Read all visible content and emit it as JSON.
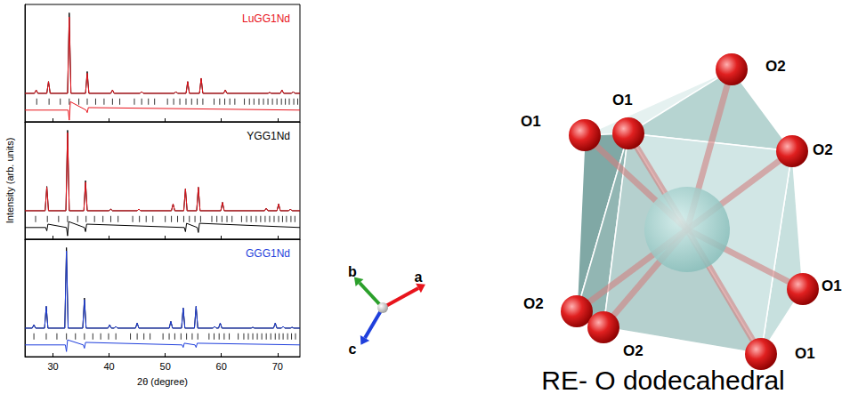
{
  "figure": {
    "ylabel": "Intensity (arb. units)"
  },
  "chart_data": [
    {
      "type": "line",
      "title": "LuGG1Nd",
      "color": "#e8141c",
      "xlim": [
        25,
        74
      ],
      "xticks": [
        30,
        40,
        50,
        60,
        70
      ],
      "ylim": [
        -30,
        110
      ],
      "grid": false,
      "tick_labels": false,
      "series": [
        {
          "type": "line",
          "color": "#000000",
          "x": [
            25,
            26.7,
            27.0,
            27.3,
            28.9,
            29.2,
            29.5,
            32.6,
            32.9,
            33.2,
            35.8,
            36.1,
            36.4,
            40.3,
            40.6,
            40.9,
            45.5,
            45.8,
            46.1,
            51.6,
            51.9,
            52.2,
            53.7,
            54.0,
            54.3,
            56.1,
            56.4,
            56.7,
            60.4,
            60.7,
            61.0,
            68.3,
            68.6,
            68.9,
            70.5,
            70.8,
            71.1,
            72.5,
            72.8,
            73.1,
            74
          ],
          "values": [
            4,
            4,
            8,
            4,
            4,
            18,
            4,
            4,
            100,
            4,
            4,
            30,
            4,
            4,
            8,
            4,
            4,
            6,
            4,
            4,
            6,
            4,
            4,
            18,
            4,
            4,
            22,
            4,
            4,
            8,
            4,
            4,
            5,
            4,
            4,
            8,
            4,
            4,
            6,
            4,
            4
          ]
        },
        {
          "type": "line",
          "color": "#e8141c",
          "x": [
            25,
            26.7,
            27.0,
            27.3,
            28.9,
            29.2,
            29.5,
            32.6,
            32.9,
            33.2,
            35.8,
            36.1,
            36.4,
            40.3,
            40.6,
            40.9,
            45.5,
            45.8,
            46.1,
            51.6,
            51.9,
            52.2,
            53.7,
            54.0,
            54.3,
            56.1,
            56.4,
            56.7,
            60.4,
            60.7,
            61.0,
            68.3,
            68.6,
            68.9,
            70.5,
            70.8,
            71.1,
            72.5,
            72.8,
            73.1,
            74
          ],
          "values": [
            4,
            4,
            8,
            4,
            4,
            18,
            4,
            4,
            95,
            4,
            4,
            28,
            4,
            4,
            8,
            4,
            4,
            6,
            4,
            4,
            6,
            4,
            4,
            18,
            4,
            4,
            22,
            4,
            4,
            8,
            4,
            4,
            5,
            4,
            4,
            8,
            4,
            4,
            6,
            4,
            4
          ]
        },
        {
          "type": "line",
          "color": "#e8141c",
          "x": [
            25,
            32.7,
            32.9,
            33.1,
            35.9,
            36.1,
            36.3,
            74
          ],
          "values": [
            -16,
            -16,
            -28,
            -6,
            -16,
            -19,
            -13,
            -16
          ]
        }
      ],
      "reflections": {
        "color": "#000000",
        "y": -6,
        "x": [
          27.1,
          29.3,
          31.3,
          32.9,
          34.6,
          36.1,
          37.6,
          39.1,
          40.6,
          41.9,
          44.5,
          45.8,
          47.0,
          48.1,
          50.4,
          51.5,
          52.6,
          53.7,
          54.7,
          55.7,
          56.7,
          58.7,
          59.7,
          60.6,
          61.5,
          62.4,
          64.1,
          65.0,
          65.8,
          66.7,
          67.5,
          68.3,
          69.1,
          69.9,
          70.7,
          71.4,
          72.1,
          72.9,
          73.6
        ]
      }
    },
    {
      "type": "line",
      "title": "YGG1Nd",
      "color": "#000000",
      "xlim": [
        25,
        74
      ],
      "xticks": [
        30,
        40,
        50,
        60,
        70
      ],
      "ylim": [
        -30,
        110
      ],
      "grid": false,
      "tick_labels": false,
      "series": [
        {
          "type": "line",
          "color": "#000000",
          "x": [
            25,
            28.6,
            28.9,
            29.2,
            32.3,
            32.6,
            32.9,
            35.5,
            35.8,
            36.1,
            40.0,
            40.3,
            40.6,
            45.0,
            45.3,
            45.6,
            51.1,
            51.4,
            51.7,
            53.3,
            53.6,
            53.9,
            55.6,
            55.9,
            56.2,
            59.9,
            60.2,
            60.5,
            67.7,
            68.0,
            68.3,
            69.9,
            70.2,
            70.5,
            72.0,
            72.3,
            72.6,
            74
          ],
          "values": [
            4,
            4,
            33,
            4,
            4,
            100,
            4,
            4,
            40,
            4,
            4,
            6,
            4,
            4,
            6,
            4,
            4,
            12,
            4,
            4,
            30,
            4,
            4,
            32,
            4,
            4,
            14,
            4,
            4,
            7,
            4,
            4,
            12,
            4,
            4,
            6,
            4,
            4
          ]
        },
        {
          "type": "line",
          "color": "#e8141c",
          "x": [
            25,
            28.6,
            28.9,
            29.2,
            32.3,
            32.6,
            32.9,
            35.5,
            35.8,
            36.1,
            40.0,
            40.3,
            40.6,
            45.0,
            45.3,
            45.6,
            51.1,
            51.4,
            51.7,
            53.3,
            53.6,
            53.9,
            55.6,
            55.9,
            56.2,
            59.9,
            60.2,
            60.5,
            67.7,
            68.0,
            68.3,
            69.9,
            70.2,
            70.5,
            72.0,
            72.3,
            72.6,
            74
          ],
          "values": [
            4,
            4,
            32,
            4,
            4,
            97,
            4,
            4,
            38,
            4,
            4,
            6,
            4,
            4,
            6,
            4,
            4,
            12,
            4,
            4,
            30,
            4,
            4,
            32,
            4,
            4,
            14,
            4,
            4,
            7,
            4,
            4,
            12,
            4,
            4,
            6,
            4,
            4
          ]
        },
        {
          "type": "line",
          "color": "#000000",
          "x": [
            25,
            28.7,
            28.9,
            29.1,
            32.4,
            32.6,
            32.8,
            35.6,
            35.8,
            36.0,
            53.4,
            53.6,
            53.8,
            55.7,
            55.9,
            56.1,
            74
          ],
          "values": [
            -16,
            -16,
            -20,
            -12,
            -16,
            -26,
            -9,
            -16,
            -21,
            -12,
            -16,
            -21,
            -11,
            -16,
            -22,
            -11,
            -16
          ]
        }
      ],
      "reflections": {
        "color": "#000000",
        "y": -6,
        "x": [
          26.9,
          29.0,
          31.0,
          32.6,
          34.4,
          35.9,
          37.4,
          38.9,
          40.3,
          41.6,
          44.2,
          45.4,
          46.6,
          47.8,
          50.0,
          51.1,
          52.2,
          53.3,
          54.3,
          55.3,
          56.3,
          58.3,
          59.2,
          60.1,
          61.0,
          61.9,
          63.6,
          64.5,
          65.3,
          66.2,
          67.0,
          67.8,
          68.6,
          69.4,
          70.2,
          70.9,
          71.6,
          72.4,
          73.1
        ]
      }
    },
    {
      "type": "line",
      "title": "GGG1Nd",
      "color": "#1f3fdc",
      "xlabel": "2θ (degree)",
      "xlim": [
        25,
        74
      ],
      "xticks": [
        30,
        40,
        50,
        60,
        70
      ],
      "ylim": [
        -30,
        110
      ],
      "grid": false,
      "tick_labels": "x",
      "series": [
        {
          "type": "line",
          "color": "#000000",
          "x": [
            25,
            26.3,
            26.6,
            26.9,
            28.5,
            28.8,
            29.1,
            32.1,
            32.4,
            32.7,
            35.3,
            35.6,
            35.9,
            39.8,
            40.1,
            40.4,
            40.9,
            41.2,
            41.5,
            44.7,
            45.0,
            45.3,
            50.7,
            51.0,
            51.3,
            52.9,
            53.2,
            53.5,
            55.2,
            55.5,
            55.8,
            58.5,
            58.8,
            59.1,
            59.5,
            59.8,
            60.1,
            65.3,
            65.6,
            65.9,
            69.3,
            69.6,
            69.9,
            70.7,
            71.0,
            71.3,
            72.3,
            72.6,
            72.9,
            74
          ],
          "values": [
            4,
            4,
            8,
            4,
            4,
            30,
            4,
            4,
            100,
            4,
            4,
            40,
            4,
            4,
            8,
            4,
            4,
            6,
            4,
            4,
            10,
            4,
            4,
            12,
            4,
            4,
            28,
            4,
            4,
            30,
            4,
            4,
            6,
            4,
            4,
            10,
            4,
            4,
            5,
            4,
            4,
            10,
            4,
            4,
            6,
            4,
            4,
            5,
            4,
            4
          ]
        },
        {
          "type": "line",
          "color": "#1f3fdc",
          "x": [
            25,
            26.3,
            26.6,
            26.9,
            28.5,
            28.8,
            29.1,
            32.1,
            32.4,
            32.7,
            35.3,
            35.6,
            35.9,
            39.8,
            40.1,
            40.4,
            40.9,
            41.2,
            41.5,
            44.7,
            45.0,
            45.3,
            50.7,
            51.0,
            51.3,
            52.9,
            53.2,
            53.5,
            55.2,
            55.5,
            55.8,
            58.5,
            58.8,
            59.1,
            59.5,
            59.8,
            60.1,
            65.3,
            65.6,
            65.9,
            69.3,
            69.6,
            69.9,
            70.7,
            71.0,
            71.3,
            72.3,
            72.6,
            72.9,
            74
          ],
          "values": [
            4,
            4,
            8,
            4,
            4,
            30,
            4,
            4,
            96,
            4,
            4,
            38,
            4,
            4,
            8,
            4,
            4,
            6,
            4,
            4,
            10,
            4,
            4,
            12,
            4,
            4,
            28,
            4,
            4,
            30,
            4,
            4,
            6,
            4,
            4,
            10,
            4,
            4,
            5,
            4,
            4,
            10,
            4,
            4,
            6,
            4,
            4,
            5,
            4,
            4
          ]
        },
        {
          "type": "line",
          "color": "#1f3fdc",
          "x": [
            25,
            32.2,
            32.4,
            32.6,
            35.4,
            35.6,
            35.8,
            53.0,
            53.2,
            53.4,
            55.3,
            55.5,
            55.7,
            74
          ],
          "values": [
            -16,
            -16,
            -24,
            -10,
            -16,
            -20,
            -13,
            -16,
            -19,
            -14,
            -16,
            -19,
            -14,
            -16
          ]
        }
      ],
      "reflections": {
        "color": "#000000",
        "y": -6,
        "x": [
          26.6,
          28.8,
          30.7,
          32.4,
          34.0,
          35.6,
          37.1,
          38.5,
          39.9,
          41.2,
          43.8,
          45.0,
          46.2,
          47.3,
          49.6,
          50.7,
          51.7,
          52.8,
          53.8,
          54.8,
          55.8,
          57.8,
          58.7,
          59.6,
          60.5,
          61.4,
          63.0,
          64.0,
          64.8,
          65.6,
          66.4,
          67.2,
          68.0,
          68.8,
          69.6,
          70.3,
          71.0,
          71.8,
          72.5,
          73.2
        ]
      }
    }
  ],
  "diagram": {
    "axes": [
      {
        "label": "a",
        "color": "#e8141c"
      },
      {
        "label": "b",
        "color": "#2ca02c"
      },
      {
        "label": "c",
        "color": "#1f3fdc"
      }
    ],
    "atoms": [
      {
        "label": "O1"
      },
      {
        "label": "O1"
      },
      {
        "label": "O2"
      },
      {
        "label": "O2"
      },
      {
        "label": "O1"
      },
      {
        "label": "O1"
      },
      {
        "label": "O2"
      },
      {
        "label": "O2"
      }
    ],
    "caption": "RE- O dodecahedral"
  }
}
